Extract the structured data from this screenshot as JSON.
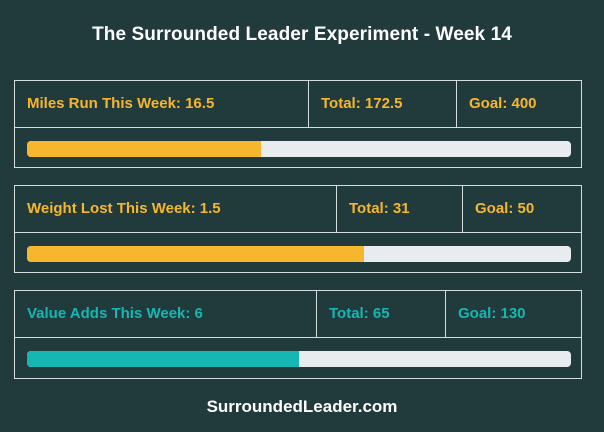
{
  "header": {
    "title": "The Surrounded Leader Experiment - Week 14"
  },
  "colors": {
    "background": "#213a3b",
    "accent_yellow": "#f6b72e",
    "accent_teal": "#16b7b2",
    "track": "#e9ecee",
    "border": "#d5dcdc"
  },
  "trackers": [
    {
      "weekly_label": "Miles Run This Week: 16.5",
      "total_label": "Total: 172.5",
      "goal_label": "Goal: 400",
      "progress_fraction": 0.43,
      "color": "#f6b72e"
    },
    {
      "weekly_label": "Weight Lost This Week: 1.5",
      "total_label": "Total: 31",
      "goal_label": "Goal: 50",
      "progress_fraction": 0.62,
      "color": "#f6b72e"
    },
    {
      "weekly_label": "Value Adds This Week: 6",
      "total_label": "Total: 65",
      "goal_label": "Goal: 130",
      "progress_fraction": 0.5,
      "color": "#16b7b2"
    }
  ],
  "footer": {
    "site_link": "SurroundedLeader.com"
  }
}
